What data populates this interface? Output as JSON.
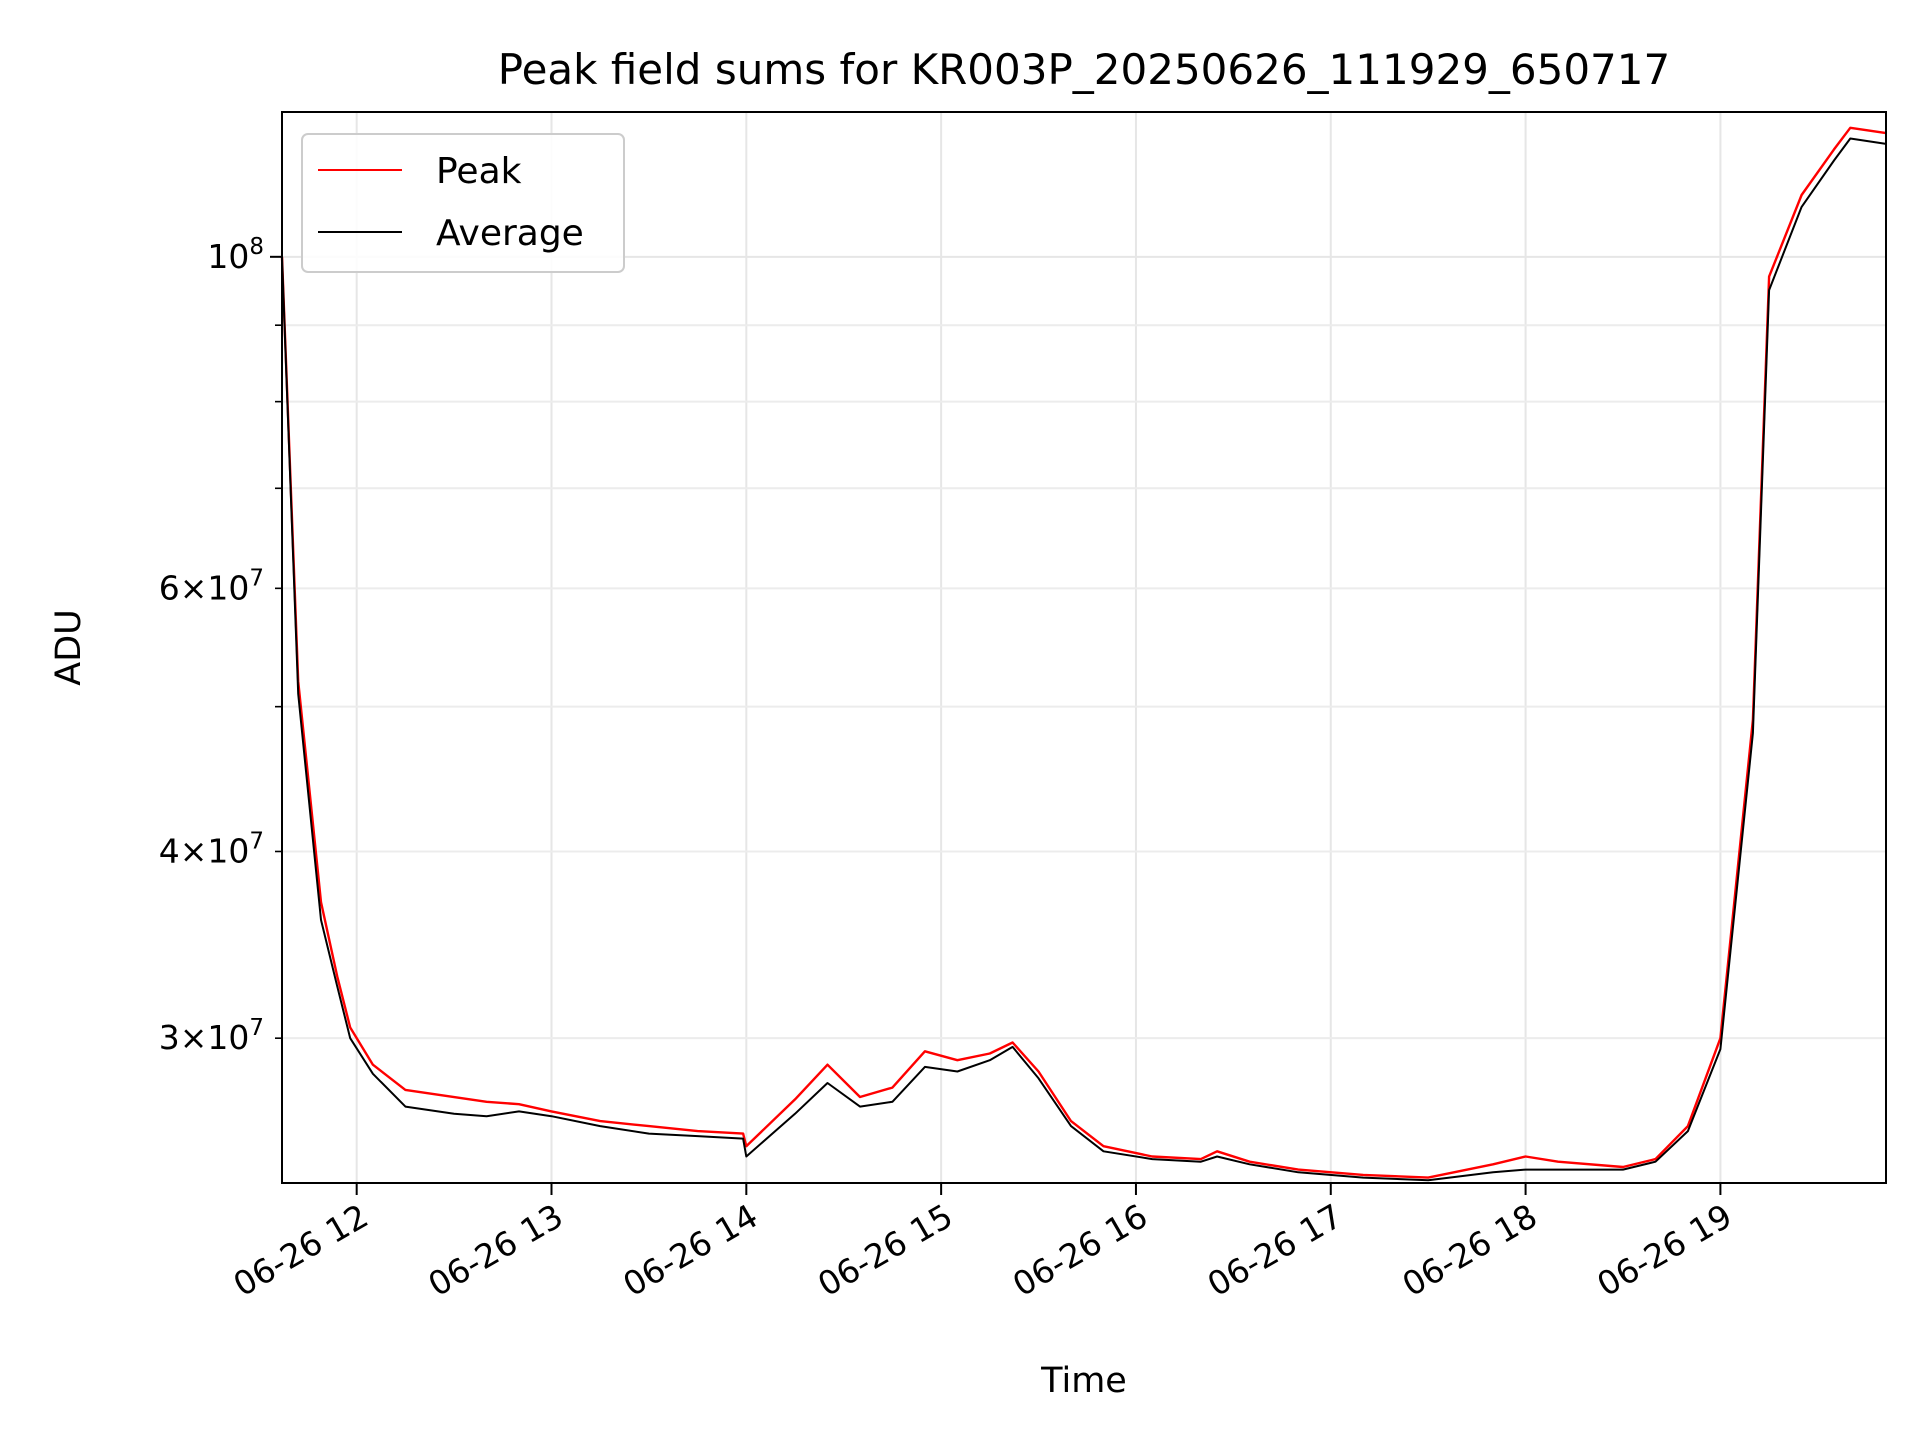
{
  "chart_data": {
    "type": "line",
    "title": "Peak field sums for KR003P_20250626_111929_650717",
    "xlabel": "Time",
    "ylabel": "ADU",
    "yscale": "log",
    "grid": true,
    "legend_position": "top-left",
    "xlim": [
      "2025-06-26 11:37",
      "2025-06-26 19:51"
    ],
    "ylim": [
      24000000,
      125000000
    ],
    "x_ticks": [
      {
        "value": "2025-06-26 12:00",
        "label": "06-26 12"
      },
      {
        "value": "2025-06-26 13:00",
        "label": "06-26 13"
      },
      {
        "value": "2025-06-26 14:00",
        "label": "06-26 14"
      },
      {
        "value": "2025-06-26 15:00",
        "label": "06-26 15"
      },
      {
        "value": "2025-06-26 16:00",
        "label": "06-26 16"
      },
      {
        "value": "2025-06-26 17:00",
        "label": "06-26 17"
      },
      {
        "value": "2025-06-26 18:00",
        "label": "06-26 18"
      },
      {
        "value": "2025-06-26 19:00",
        "label": "06-26 19"
      }
    ],
    "y_major_ticks": [
      {
        "value": 100000000,
        "base": "10",
        "exp": "8"
      }
    ],
    "y_minor_ticks": [
      {
        "value": 30000000,
        "mant": "3",
        "base": "10",
        "exp": "7"
      },
      {
        "value": 40000000,
        "mant": "4",
        "base": "10",
        "exp": "7"
      },
      {
        "value": 50000000
      },
      {
        "value": 60000000,
        "mant": "6",
        "base": "10",
        "exp": "7"
      },
      {
        "value": 70000000
      },
      {
        "value": 80000000
      },
      {
        "value": 90000000
      }
    ],
    "times": [
      "2025-06-26 11:37",
      "2025-06-26 11:42",
      "2025-06-26 11:49",
      "2025-06-26 11:54",
      "2025-06-26 11:58",
      "2025-06-26 12:05",
      "2025-06-26 12:15",
      "2025-06-26 12:30",
      "2025-06-26 12:40",
      "2025-06-26 12:50",
      "2025-06-26 13:00",
      "2025-06-26 13:15",
      "2025-06-26 13:30",
      "2025-06-26 13:45",
      "2025-06-26 13:59",
      "2025-06-26 14:00",
      "2025-06-26 14:15",
      "2025-06-26 14:25",
      "2025-06-26 14:35",
      "2025-06-26 14:45",
      "2025-06-26 14:55",
      "2025-06-26 15:05",
      "2025-06-26 15:15",
      "2025-06-26 15:22",
      "2025-06-26 15:30",
      "2025-06-26 15:40",
      "2025-06-26 15:50",
      "2025-06-26 16:05",
      "2025-06-26 16:20",
      "2025-06-26 16:25",
      "2025-06-26 16:35",
      "2025-06-26 16:50",
      "2025-06-26 17:10",
      "2025-06-26 17:30",
      "2025-06-26 17:50",
      "2025-06-26 18:00",
      "2025-06-26 18:10",
      "2025-06-26 18:30",
      "2025-06-26 18:40",
      "2025-06-26 18:50",
      "2025-06-26 19:00",
      "2025-06-26 19:10",
      "2025-06-26 19:15",
      "2025-06-26 19:25",
      "2025-06-26 19:35",
      "2025-06-26 19:40",
      "2025-06-26 19:51"
    ],
    "series": [
      {
        "name": "Peak",
        "color": "#ff0000",
        "values": [
          100000000,
          52000000,
          37000000,
          33000000,
          30500000,
          28800000,
          27700000,
          27400000,
          27200000,
          27100000,
          26800000,
          26400000,
          26200000,
          26000000,
          25900000,
          25400000,
          27300000,
          28800000,
          27400000,
          27800000,
          29400000,
          29000000,
          29300000,
          29800000,
          28500000,
          26400000,
          25400000,
          25000000,
          24900000,
          25200000,
          24800000,
          24500000,
          24300000,
          24200000,
          24700000,
          25000000,
          24800000,
          24600000,
          24900000,
          26200000,
          30000000,
          49000000,
          97000000,
          110000000,
          118000000,
          122000000,
          121000000
        ]
      },
      {
        "name": "Average",
        "color": "#000000",
        "values": [
          100000000,
          51000000,
          36000000,
          32500000,
          30000000,
          28400000,
          27000000,
          26700000,
          26600000,
          26800000,
          26600000,
          26200000,
          25900000,
          25800000,
          25700000,
          25000000,
          26700000,
          28000000,
          27000000,
          27200000,
          28700000,
          28500000,
          29000000,
          29600000,
          28200000,
          26200000,
          25200000,
          24900000,
          24800000,
          25000000,
          24700000,
          24400000,
          24200000,
          24100000,
          24400000,
          24500000,
          24500000,
          24500000,
          24800000,
          26000000,
          29500000,
          48000000,
          95000000,
          108000000,
          116000000,
          120000000,
          119000000
        ]
      }
    ]
  }
}
